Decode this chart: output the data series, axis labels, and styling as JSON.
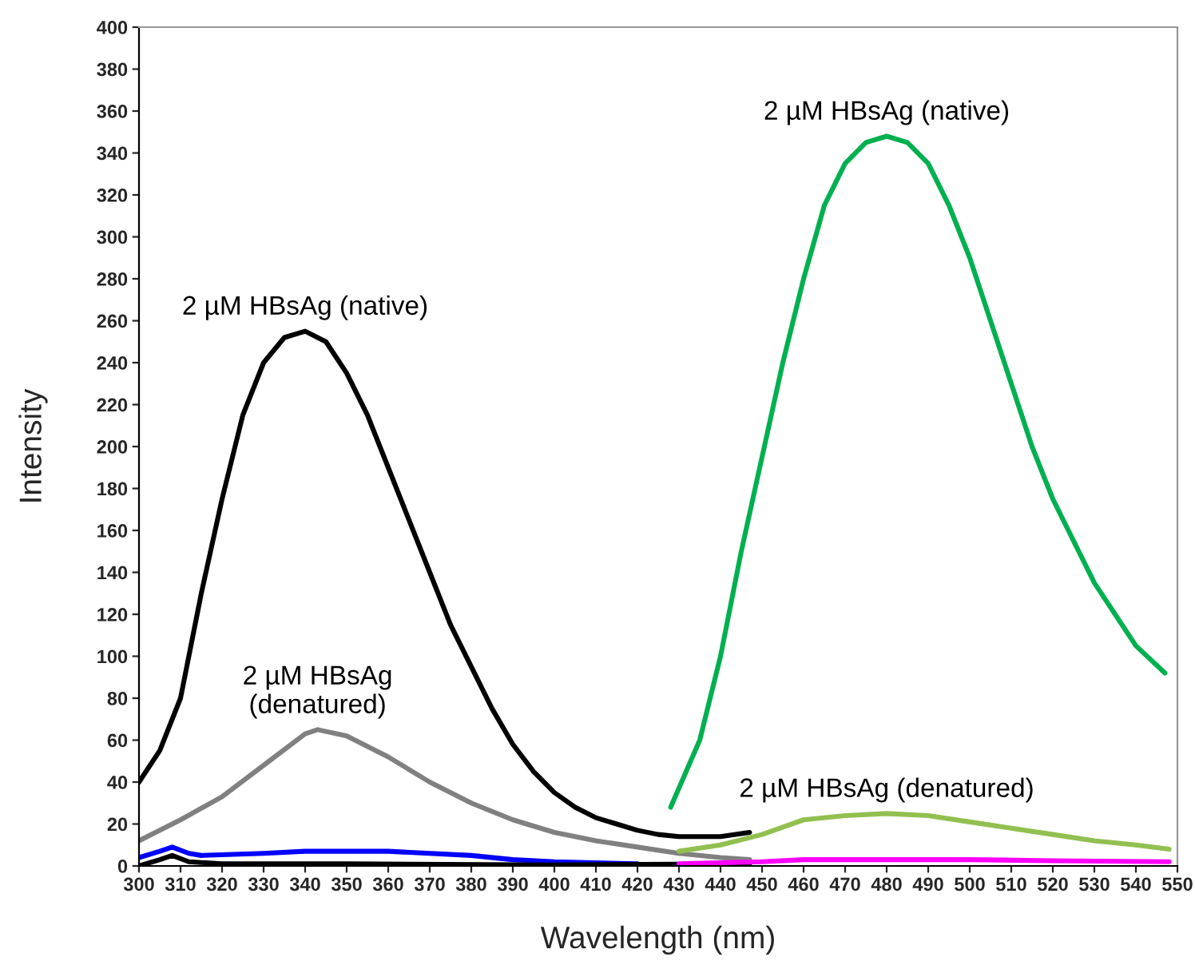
{
  "chart_data": {
    "type": "line",
    "xlabel": "Wavelength (nm)",
    "ylabel": "Intensity",
    "xlim": [
      300,
      550
    ],
    "xticks": [
      300,
      310,
      320,
      330,
      340,
      350,
      360,
      370,
      380,
      390,
      400,
      410,
      420,
      430,
      440,
      450,
      460,
      470,
      480,
      490,
      500,
      510,
      520,
      530,
      540,
      550
    ],
    "ylim": [
      0,
      400
    ],
    "yticks": [
      0,
      20,
      40,
      60,
      80,
      100,
      120,
      140,
      160,
      180,
      200,
      220,
      240,
      260,
      280,
      300,
      320,
      340,
      360,
      380,
      400
    ],
    "grid": false,
    "legend": false,
    "line_style": "solid",
    "marker": "none",
    "series": [
      {
        "name": "2 µM HBsAg (native)",
        "color": "#000000",
        "x": [
          300,
          305,
          310,
          315,
          320,
          325,
          330,
          335,
          340,
          345,
          350,
          355,
          360,
          365,
          370,
          375,
          380,
          385,
          390,
          395,
          400,
          405,
          410,
          415,
          420,
          425,
          430,
          440,
          447
        ],
        "values": [
          40,
          55,
          80,
          130,
          175,
          215,
          240,
          252,
          255,
          250,
          235,
          215,
          190,
          165,
          140,
          115,
          95,
          75,
          58,
          45,
          35,
          28,
          23,
          20,
          17,
          15,
          14,
          14,
          16
        ]
      },
      {
        "name": "2 µM HBsAg\n(denatured)",
        "color": "#808080",
        "x": [
          300,
          310,
          320,
          330,
          340,
          343,
          350,
          360,
          370,
          380,
          390,
          400,
          410,
          420,
          430,
          440,
          447
        ],
        "values": [
          12,
          22,
          33,
          48,
          63,
          65,
          62,
          52,
          40,
          30,
          22,
          16,
          12,
          9,
          6,
          4,
          3
        ]
      },
      {
        "color": "#0000ff",
        "x": [
          300,
          305,
          308,
          312,
          315,
          330,
          340,
          360,
          380,
          390,
          400,
          420
        ],
        "values": [
          4,
          7,
          9,
          6,
          5,
          6,
          7,
          7,
          5,
          3,
          2,
          1
        ]
      },
      {
        "color": "#000000",
        "x": [
          300,
          305,
          308,
          312,
          320,
          350,
          400,
          447
        ],
        "values": [
          0,
          3,
          5,
          2,
          1,
          1,
          0.5,
          1
        ]
      },
      {
        "name": "2 µM HBsAg (native)",
        "color": "#00b050",
        "x": [
          428,
          435,
          440,
          445,
          450,
          455,
          460,
          465,
          470,
          475,
          480,
          485,
          490,
          495,
          500,
          505,
          510,
          515,
          520,
          525,
          530,
          535,
          540,
          547
        ],
        "values": [
          28,
          60,
          100,
          150,
          195,
          240,
          280,
          315,
          335,
          345,
          348,
          345,
          335,
          315,
          290,
          260,
          230,
          200,
          175,
          155,
          135,
          120,
          105,
          92
        ]
      },
      {
        "name": "2 µM HBsAg (denatured)",
        "color": "#92c050",
        "x": [
          430,
          440,
          450,
          460,
          470,
          480,
          490,
          500,
          510,
          520,
          530,
          540,
          548
        ],
        "values": [
          7,
          10,
          15,
          22,
          24,
          25,
          24,
          21,
          18,
          15,
          12,
          10,
          8
        ]
      },
      {
        "color": "#ff00ff",
        "x": [
          430,
          450,
          460,
          480,
          500,
          520,
          548
        ],
        "values": [
          1,
          2,
          3,
          3,
          3,
          2.5,
          2
        ]
      }
    ]
  }
}
